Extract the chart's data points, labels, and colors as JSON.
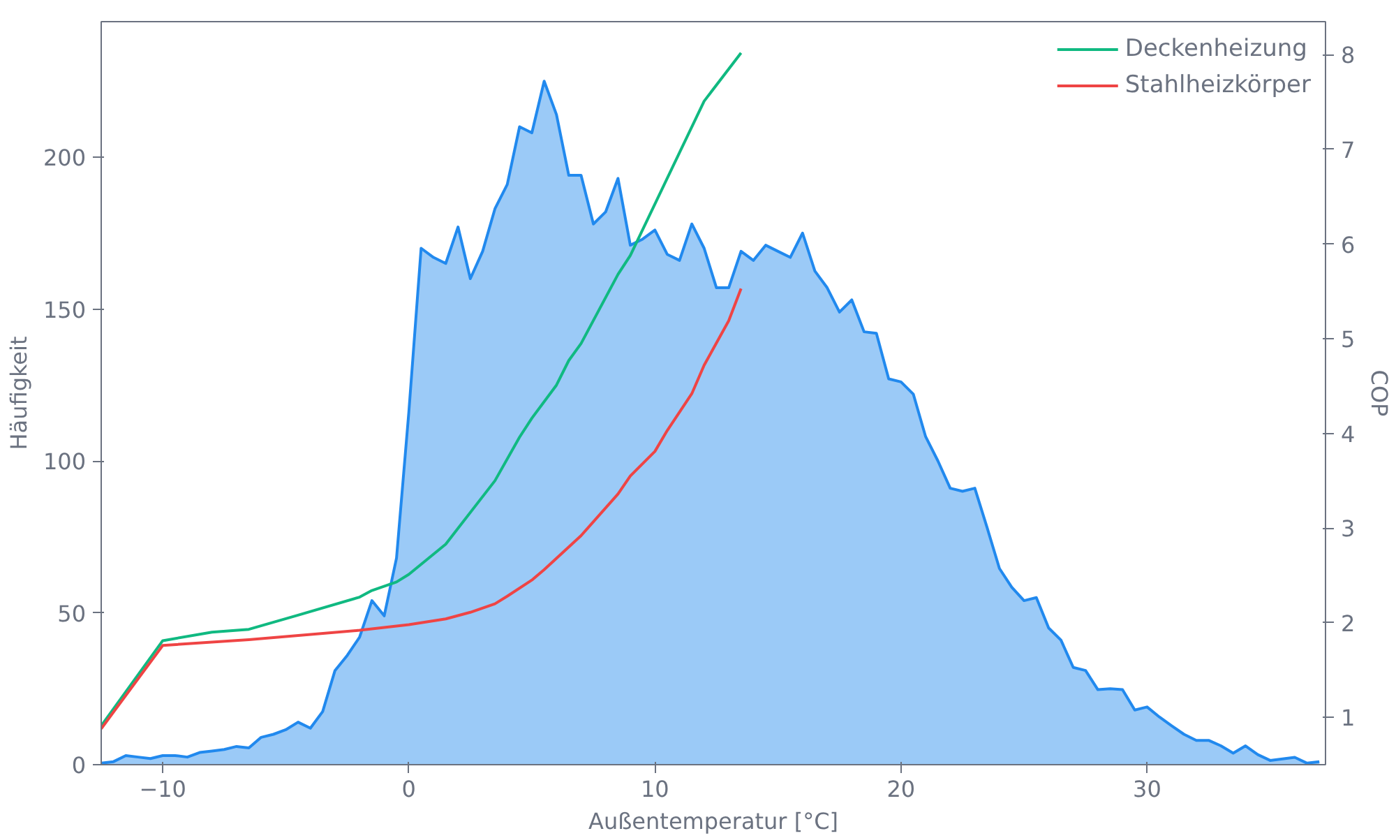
{
  "chart_data": {
    "type": "line",
    "xlabel": "Außentemperatur [°C]",
    "ylabel": "Häufigkeit",
    "y2label": "COP",
    "xlim": [
      -12.5,
      37.25
    ],
    "xticks": [
      {
        "value": -10,
        "label": "−10"
      },
      0,
      10,
      20,
      30
    ],
    "ylim": [
      0,
      244.6
    ],
    "yticks": [
      0,
      50,
      100,
      150,
      200
    ],
    "y2lim": [
      0.5,
      8.35
    ],
    "y2ticks": [
      1,
      2,
      3,
      4,
      5,
      6,
      7,
      8
    ],
    "grid": false,
    "legend": "top right",
    "series": [
      {
        "type": "area",
        "color": "#2189ee",
        "x": [
          -12.5,
          -12,
          -11.5,
          -11,
          -10.5,
          -10,
          -9.5,
          -9,
          -8.5,
          -8,
          -7.5,
          -7,
          -6.5,
          -6,
          -5.5,
          -5,
          -4.5,
          -4,
          -3.5,
          -3,
          -2.5,
          -2,
          -1.5,
          -1,
          -0.5,
          0,
          0.5,
          1,
          1.5,
          2,
          2.5,
          3,
          3.5,
          4,
          4.5,
          5,
          5.5,
          6,
          6.5,
          7,
          7.5,
          8,
          8.5,
          9,
          9.5,
          10,
          10.5,
          11,
          11.5,
          12,
          12.5,
          13,
          13.5,
          14,
          14.5,
          15,
          15.5,
          16,
          16.5,
          17,
          17.5,
          18,
          18.5,
          19,
          19.5,
          20,
          20.5,
          21,
          21.5,
          22,
          22.5,
          23,
          23.5,
          24,
          24.5,
          25,
          25.5,
          26,
          26.5,
          27,
          27.5,
          28,
          28.5,
          29,
          29.5,
          30,
          30.5,
          31,
          31.5,
          32,
          32.5,
          33,
          33.5,
          34,
          34.5,
          35,
          35.5,
          36,
          36.5,
          37
        ],
        "values": [
          0.5,
          1,
          3,
          2.5,
          2,
          3,
          3,
          2.5,
          4,
          4.5,
          5,
          6,
          5.5,
          9,
          10,
          11.5,
          14,
          12,
          17.5,
          31,
          36,
          42,
          54,
          49,
          68,
          116,
          170,
          167,
          165,
          177,
          160,
          169,
          183,
          191,
          210,
          208,
          225,
          214,
          194,
          194,
          178,
          182,
          193,
          171,
          173,
          176,
          168,
          166,
          178,
          170,
          157,
          157,
          169,
          166,
          171,
          169,
          167,
          175,
          162.5,
          157,
          149,
          153,
          142.5,
          142,
          127,
          126,
          122,
          108,
          100,
          91,
          90,
          91,
          78,
          64.6,
          58.4,
          54,
          55,
          45,
          41,
          32,
          31,
          24.7,
          25,
          24.7,
          18,
          19,
          15.7,
          12.8,
          10,
          8,
          8,
          6.2,
          3.8,
          6.2,
          3.3,
          1.4,
          1.9,
          2.4,
          0.5,
          1
        ]
      },
      {
        "name": "Deckenheizung",
        "color": "#10b981",
        "axis": "y2",
        "x": [
          -12.5,
          -10,
          -8,
          -6.5,
          -4.5,
          -2,
          -1.5,
          -0.5,
          0,
          1.5,
          3.5,
          4.5,
          5,
          6,
          6.5,
          7,
          8.5,
          9,
          12,
          13.5
        ],
        "values": [
          0.91,
          1.81,
          1.9,
          1.93,
          2.08,
          2.27,
          2.34,
          2.43,
          2.51,
          2.83,
          3.5,
          3.96,
          4.16,
          4.51,
          4.77,
          4.95,
          5.68,
          5.88,
          7.51,
          8.02
        ]
      },
      {
        "name": "Stahlheizkörper",
        "color": "#ef4444",
        "axis": "y2",
        "x": [
          -12.5,
          -10,
          -6.5,
          -2,
          0,
          1.5,
          2.5,
          3.5,
          4,
          5,
          5.5,
          7,
          8.5,
          9,
          10,
          10.5,
          11.5,
          12,
          13,
          13.5
        ],
        "values": [
          0.88,
          1.76,
          1.82,
          1.92,
          1.98,
          2.04,
          2.11,
          2.2,
          2.28,
          2.45,
          2.56,
          2.92,
          3.36,
          3.55,
          3.81,
          4.03,
          4.42,
          4.72,
          5.19,
          5.53
        ]
      }
    ]
  }
}
